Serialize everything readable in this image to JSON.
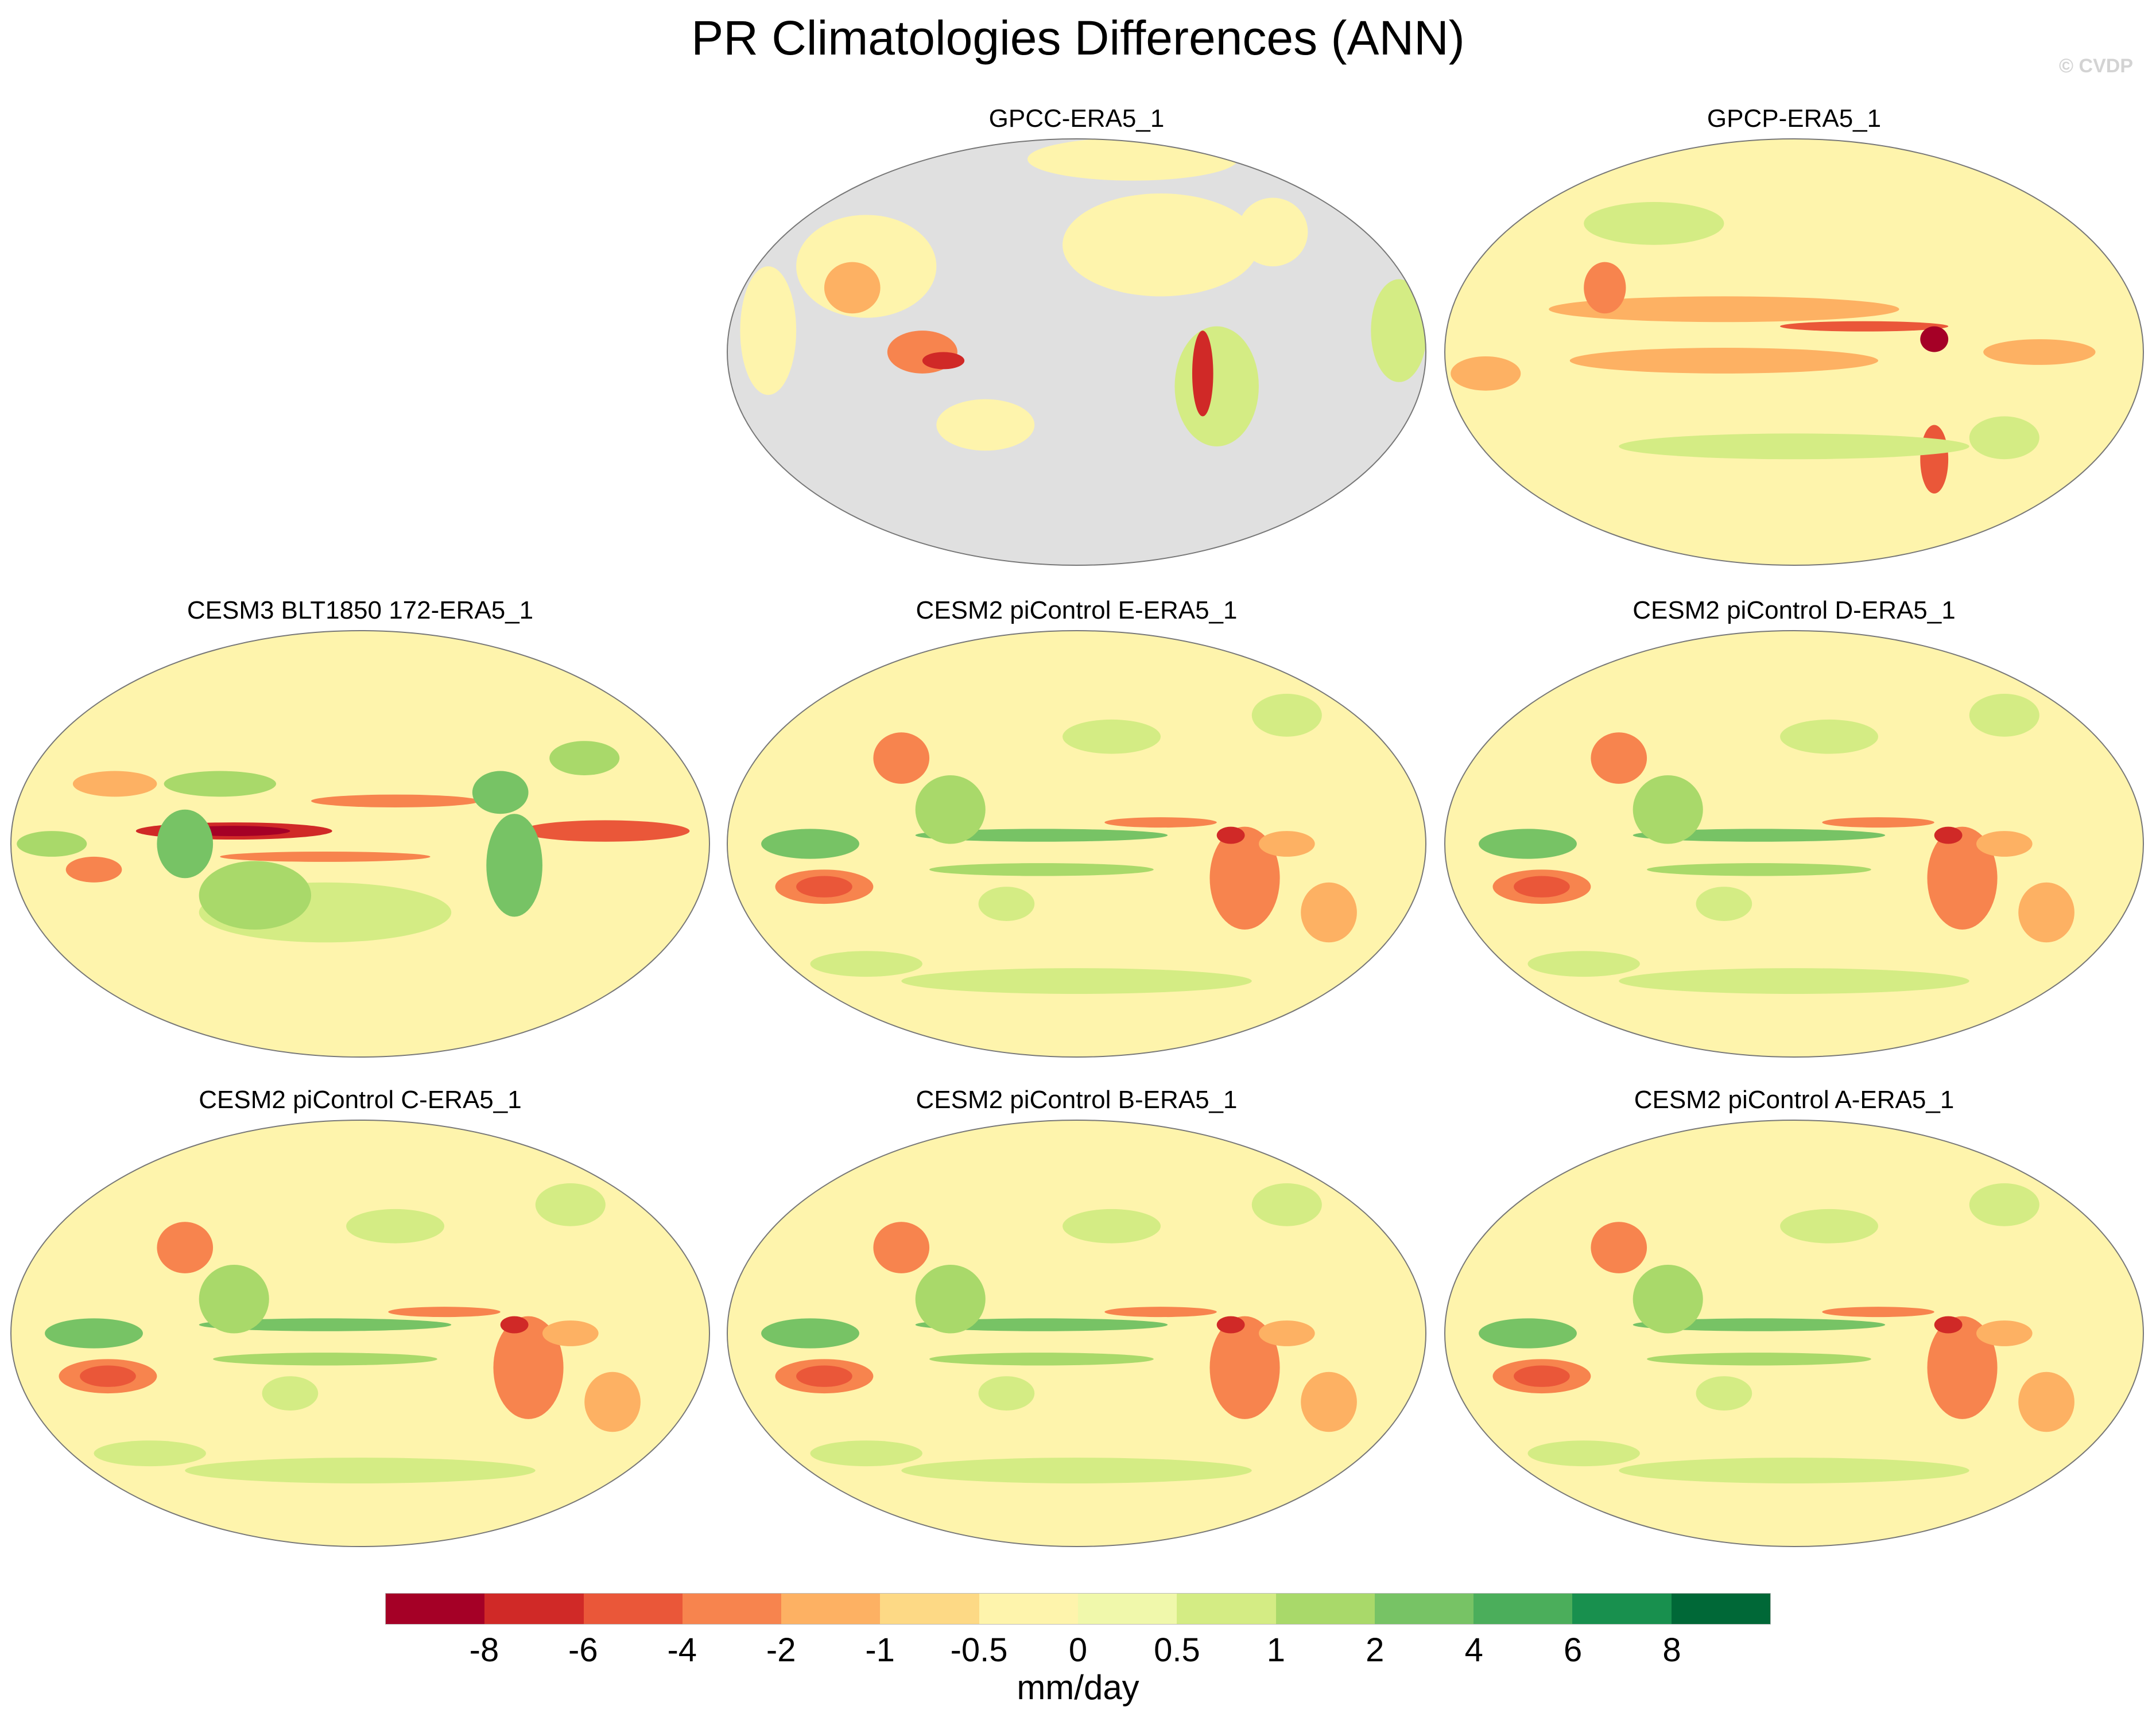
{
  "title": "PR Climatologies Differences (ANN)",
  "watermark": "© CVDP",
  "panels": [
    {
      "title": "GPCC-ERA5_1",
      "style": "land-only"
    },
    {
      "title": "GPCP-ERA5_1",
      "style": "obs"
    },
    {
      "title": "CESM3 BLT1850 172-ERA5_1",
      "style": "cesm3"
    },
    {
      "title": "CESM2 piControl E-ERA5_1",
      "style": "cesm2"
    },
    {
      "title": "CESM2 piControl D-ERA5_1",
      "style": "cesm2"
    },
    {
      "title": "CESM2 piControl C-ERA5_1",
      "style": "cesm2"
    },
    {
      "title": "CESM2 piControl B-ERA5_1",
      "style": "cesm2"
    },
    {
      "title": "CESM2 piControl A-ERA5_1",
      "style": "cesm2"
    }
  ],
  "colorbar": {
    "units": "mm/day",
    "labels": [
      "-8",
      "-6",
      "-4",
      "-2",
      "-1",
      "-0.5",
      "0",
      "0.5",
      "1",
      "2",
      "4",
      "6",
      "8"
    ],
    "colors": [
      "#a50026",
      "#d02927",
      "#ea5739",
      "#f7844e",
      "#fdb163",
      "#fdd985",
      "#fef4ac",
      "#f0f8ab",
      "#d4ec84",
      "#a9d96a",
      "#77c365",
      "#4bae5b",
      "#18904e",
      "#006837"
    ],
    "missing_color": "#e0e0e0"
  }
}
